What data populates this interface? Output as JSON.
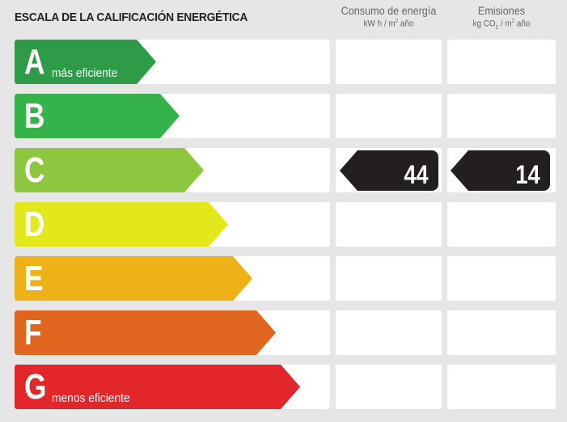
{
  "title": "ESCALA DE LA CALIFICACIÓN ENERGÉTICA",
  "columns": {
    "energy": {
      "label": "Consumo de energía",
      "unit_pre": "kW h / m",
      "unit_sup": "2",
      "unit_post": " año"
    },
    "emissions": {
      "label": "Emisiones",
      "unit_pre": "kg CO",
      "unit_sub": "2",
      "unit_mid": " / m",
      "unit_sup": "2",
      "unit_post": " año"
    }
  },
  "ratings": [
    {
      "letter": "A",
      "label": "más eficiente",
      "color": "#2e9b48"
    },
    {
      "letter": "B",
      "label": "",
      "color": "#35b34a"
    },
    {
      "letter": "C",
      "label": "",
      "color": "#8dc63f"
    },
    {
      "letter": "D",
      "label": "",
      "color": "#e2e81a"
    },
    {
      "letter": "E",
      "label": "",
      "color": "#efb118"
    },
    {
      "letter": "F",
      "label": "",
      "color": "#e0661f"
    },
    {
      "letter": "G",
      "label": "menos eficiente",
      "color": "#e3262a"
    }
  ],
  "result": {
    "rating": "C",
    "energy_value": "44",
    "emissions_value": "14",
    "tag_color": "#231f20"
  }
}
